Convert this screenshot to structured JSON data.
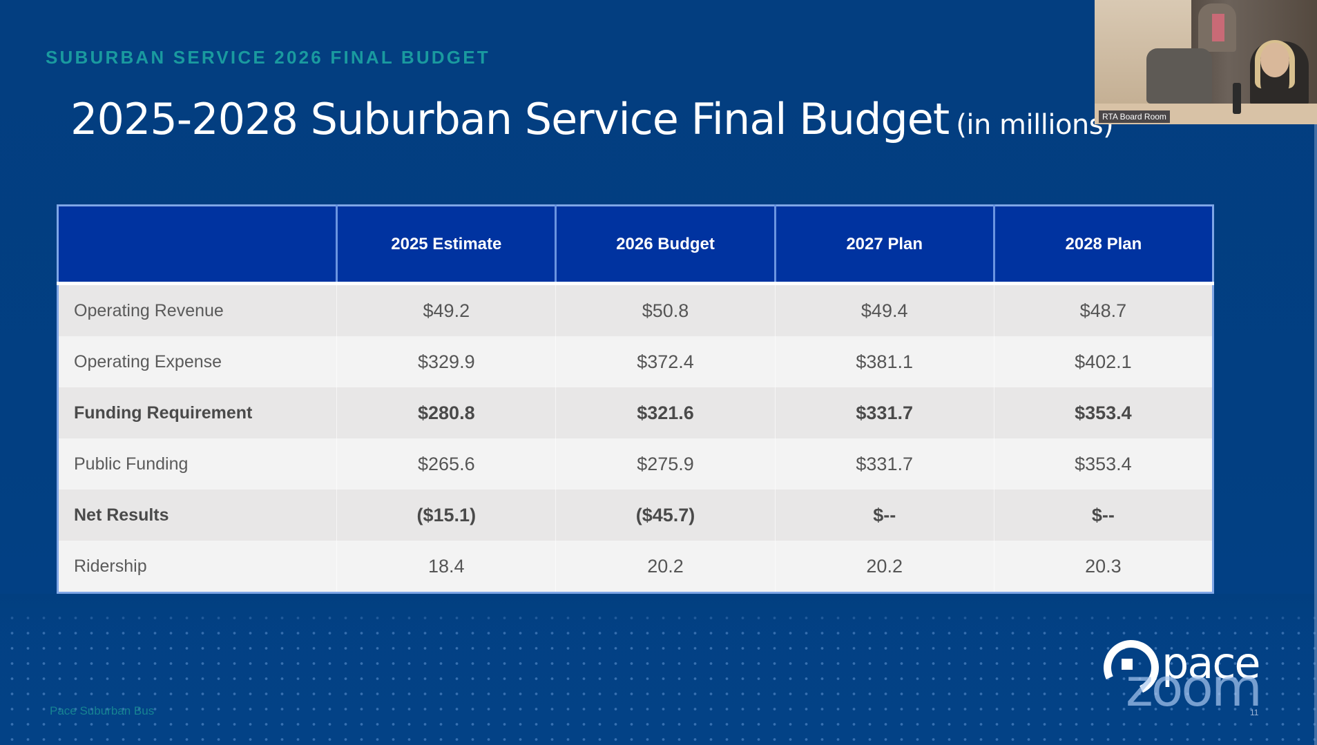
{
  "slide": {
    "eyebrow": "SUBURBAN SERVICE 2026 FINAL BUDGET",
    "title": "2025-2028 Suburban Service Final Budget",
    "title_suffix": "(in millions)",
    "footer": "Pace Suburban Bus",
    "slide_number": "11",
    "logo_text": "pace",
    "watermark": "zoom"
  },
  "video": {
    "label": "RTA Board Room"
  },
  "table": {
    "headers": [
      "",
      "2025 Estimate",
      "2026 Budget",
      "2027 Plan",
      "2028 Plan"
    ],
    "rows": [
      {
        "label": "Operating Revenue",
        "bold": false,
        "values": [
          "$49.2",
          "$50.8",
          "$49.4",
          "$48.7"
        ]
      },
      {
        "label": "Operating Expense",
        "bold": false,
        "values": [
          "$329.9",
          "$372.4",
          "$381.1",
          "$402.1"
        ]
      },
      {
        "label": "Funding Requirement",
        "bold": true,
        "values": [
          "$280.8",
          "$321.6",
          "$331.7",
          "$353.4"
        ]
      },
      {
        "label": "Public Funding",
        "bold": false,
        "values": [
          "$265.6",
          "$275.9",
          "$331.7",
          "$353.4"
        ]
      },
      {
        "label": "Net Results",
        "bold": true,
        "values": [
          "($15.1)",
          "($45.7)",
          "$--",
          "$--"
        ]
      },
      {
        "label": "Ridership",
        "bold": false,
        "values": [
          "18.4",
          "20.2",
          "20.2",
          "20.3"
        ]
      }
    ]
  },
  "colors": {
    "background": "#023f80",
    "header_fill": "#0033a0",
    "eyebrow": "#1a9a9f",
    "negative": "#d21e1e"
  }
}
